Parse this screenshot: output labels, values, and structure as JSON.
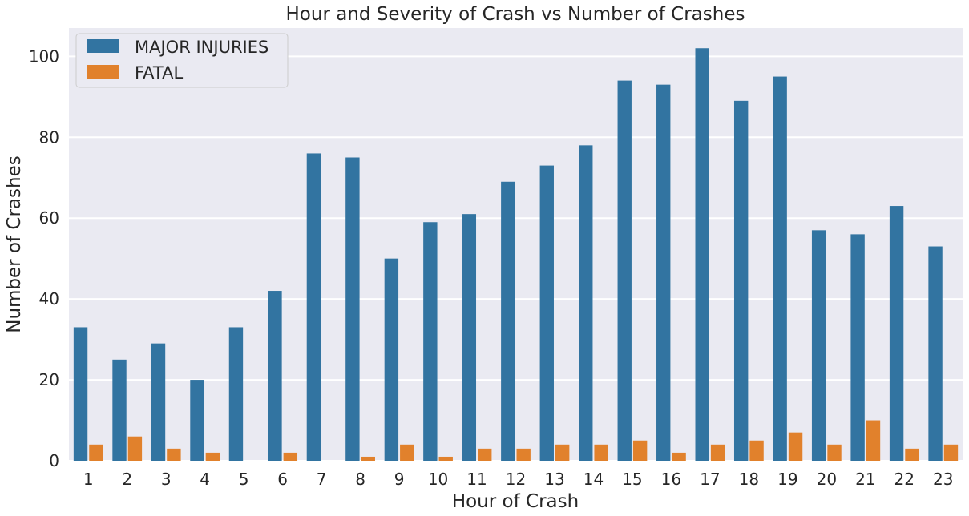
{
  "chart_data": {
    "type": "bar",
    "title": "Hour and Severity of Crash vs Number of Crashes",
    "xlabel": "Hour of Crash",
    "ylabel": "Number of Crashes",
    "categories": [
      "1",
      "2",
      "3",
      "4",
      "5",
      "6",
      "7",
      "8",
      "9",
      "10",
      "11",
      "12",
      "13",
      "14",
      "15",
      "16",
      "17",
      "18",
      "19",
      "20",
      "21",
      "22",
      "23"
    ],
    "series": [
      {
        "name": "MAJOR INJURIES",
        "color": "#3274a1",
        "values": [
          33,
          25,
          29,
          20,
          33,
          42,
          76,
          75,
          50,
          59,
          61,
          69,
          73,
          78,
          94,
          93,
          102,
          89,
          95,
          57,
          56,
          63,
          53
        ]
      },
      {
        "name": "FATAL",
        "color": "#e1812c",
        "values": [
          4,
          6,
          3,
          2,
          0,
          2,
          0,
          1,
          4,
          1,
          3,
          3,
          4,
          4,
          5,
          2,
          4,
          5,
          7,
          4,
          10,
          3,
          4
        ]
      }
    ],
    "ylim": [
      0,
      107
    ],
    "yticks": [
      0,
      20,
      40,
      60,
      80,
      100
    ],
    "grid": true,
    "legend_position": "top-left",
    "background": "#eaeaf2"
  }
}
